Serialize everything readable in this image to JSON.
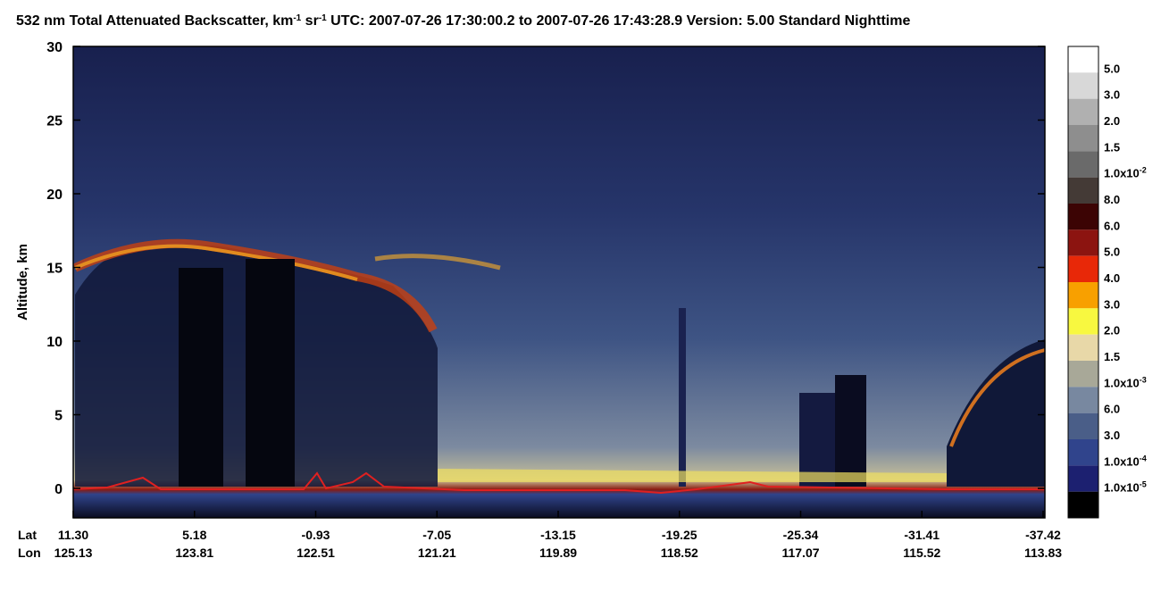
{
  "chart_data": {
    "type": "heatmap",
    "title": [
      {
        "text": "532 nm Total Attenuated Backscatter, km"
      },
      {
        "text": "-1",
        "sup": true
      },
      {
        "text": " sr"
      },
      {
        "text": "-1",
        "sup": true
      },
      {
        "text": "    UTC:  2007-07-26 17:30:00.2  to  2007-07-26 17:43:28.9    Version: 5.00  Standard  Nighttime"
      }
    ],
    "ylabel": "Altitude, km",
    "ylim": [
      -2,
      30
    ],
    "yticks": [
      0,
      5,
      10,
      15,
      20,
      25,
      30
    ],
    "row_labels": [
      "Lat",
      "Lon"
    ],
    "lat": [
      "11.30",
      "5.18",
      "-0.93",
      "-7.05",
      "-13.15",
      "-19.25",
      "-25.34",
      "-31.41",
      "-37.42"
    ],
    "lon": [
      "125.13",
      "123.81",
      "122.51",
      "121.21",
      "119.89",
      "118.52",
      "117.07",
      "115.52",
      "113.83"
    ],
    "colorbar": {
      "colors": [
        "#ffffff",
        "#d8d8d8",
        "#b0b0b0",
        "#8e8e8e",
        "#6a6a6a",
        "#443a36",
        "#3c0404",
        "#8c1410",
        "#e82808",
        "#f8a000",
        "#f8f840",
        "#e8d8a8",
        "#a8a898",
        "#7888a0",
        "#4a5e88",
        "#30448c",
        "#1c2070",
        "#000000"
      ],
      "labels": [
        {
          "text": "5.0"
        },
        {
          "text": "3.0"
        },
        {
          "text": "2.0"
        },
        {
          "text": "1.5"
        },
        {
          "text": "1.0x10",
          "sup": "-2"
        },
        {
          "text": "8.0"
        },
        {
          "text": "6.0"
        },
        {
          "text": "5.0"
        },
        {
          "text": "4.0"
        },
        {
          "text": "3.0"
        },
        {
          "text": "2.0"
        },
        {
          "text": "1.5"
        },
        {
          "text": "1.0x10",
          "sup": "-3"
        },
        {
          "text": "6.0"
        },
        {
          "text": "3.0"
        },
        {
          "text": "1.0x10",
          "sup": "-4"
        },
        {
          "text": "1.0x10",
          "sup": "-5"
        }
      ]
    }
  }
}
